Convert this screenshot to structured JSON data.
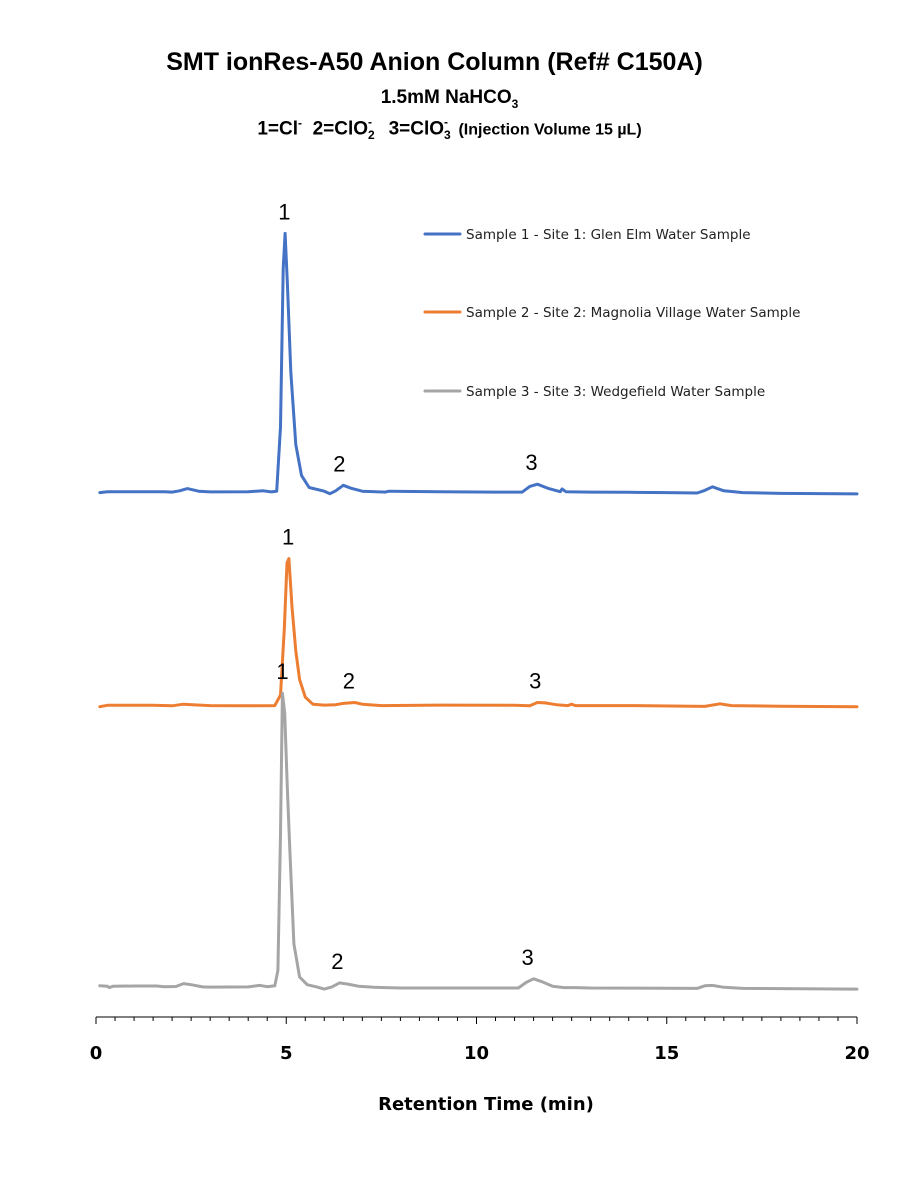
{
  "chart_data": {
    "type": "line",
    "title": "SMT ionRes-A50 Anion Column (Ref# C150A)",
    "subtitle_line2": {
      "prefix": "1.5mM NaHCO",
      "sub": "3"
    },
    "subtitle_line3": {
      "p1": "1=Cl",
      "p1_sup": "-",
      "p2": "  2=ClO",
      "p2_sub": "2",
      "p2_sup": "-",
      "p3": "  3=ClO",
      "p3_sub": "3",
      "p3_sup": "-",
      "p4": " (Injection Volume 15 µL)"
    },
    "xlabel": "Retention Time (min)",
    "ylabel": "",
    "xlim": [
      0,
      20
    ],
    "xticks": [
      "0",
      "5",
      "10",
      "15",
      "20"
    ],
    "grid": false,
    "legend_position": "top-right",
    "series": [
      {
        "name": "Sample 1 - Site 1: Glen Elm Water Sample",
        "color": "#4472C4",
        "baseline": 0,
        "points": [
          [
            0.1,
            0.2
          ],
          [
            0.3,
            0.6
          ],
          [
            1.0,
            0.6
          ],
          [
            1.8,
            0.6
          ],
          [
            2.0,
            0.4
          ],
          [
            2.2,
            1.0
          ],
          [
            2.4,
            2.0
          ],
          [
            2.7,
            0.8
          ],
          [
            3.0,
            0.5
          ],
          [
            4.0,
            0.6
          ],
          [
            4.4,
            1.0
          ],
          [
            4.6,
            0.5
          ],
          [
            4.75,
            0.8
          ],
          [
            4.85,
            30
          ],
          [
            4.92,
            102
          ],
          [
            4.97,
            118
          ],
          [
            5.03,
            95
          ],
          [
            5.12,
            55
          ],
          [
            5.25,
            22
          ],
          [
            5.4,
            8
          ],
          [
            5.6,
            2.5
          ],
          [
            6.0,
            0.8
          ],
          [
            6.15,
            -0.3
          ],
          [
            6.3,
            1.0
          ],
          [
            6.5,
            3.5
          ],
          [
            6.7,
            2.2
          ],
          [
            7.0,
            0.8
          ],
          [
            7.6,
            0.4
          ],
          [
            7.7,
            0.8
          ],
          [
            9.0,
            0.6
          ],
          [
            10.5,
            0.4
          ],
          [
            11.2,
            0.4
          ],
          [
            11.4,
            3.0
          ],
          [
            11.6,
            4.0
          ],
          [
            11.9,
            2.0
          ],
          [
            12.2,
            0.6
          ],
          [
            12.25,
            1.8
          ],
          [
            12.35,
            0.6
          ],
          [
            13.0,
            0.4
          ],
          [
            14.0,
            0.3
          ],
          [
            15.0,
            0.2
          ],
          [
            15.8,
            0.0
          ],
          [
            16.0,
            1.2
          ],
          [
            16.2,
            2.8
          ],
          [
            16.5,
            1.0
          ],
          [
            17.0,
            0.2
          ],
          [
            18.0,
            -0.2
          ],
          [
            20.0,
            -0.4
          ]
        ]
      },
      {
        "name": "Sample 2 - Site 2: Magnolia Village Water Sample",
        "color": "#ED7D31",
        "baseline": 0,
        "points": [
          [
            0.1,
            -0.3
          ],
          [
            0.3,
            0.3
          ],
          [
            1.5,
            0.3
          ],
          [
            2.0,
            0.1
          ],
          [
            2.3,
            0.8
          ],
          [
            2.6,
            0.5
          ],
          [
            3.0,
            0.2
          ],
          [
            4.0,
            0.1
          ],
          [
            4.7,
            0.2
          ],
          [
            4.85,
            5
          ],
          [
            4.95,
            35
          ],
          [
            5.02,
            65
          ],
          [
            5.07,
            67
          ],
          [
            5.15,
            45
          ],
          [
            5.25,
            25
          ],
          [
            5.35,
            12
          ],
          [
            5.5,
            4
          ],
          [
            5.7,
            0.8
          ],
          [
            6.0,
            0.4
          ],
          [
            6.3,
            0.6
          ],
          [
            6.5,
            1.2
          ],
          [
            6.8,
            1.6
          ],
          [
            7.0,
            0.8
          ],
          [
            7.5,
            0.2
          ],
          [
            9.0,
            0.4
          ],
          [
            11.0,
            0.3
          ],
          [
            11.4,
            0.1
          ],
          [
            11.6,
            1.6
          ],
          [
            11.8,
            1.4
          ],
          [
            12.1,
            0.6
          ],
          [
            12.4,
            0.2
          ],
          [
            12.5,
            0.8
          ],
          [
            12.6,
            0.2
          ],
          [
            14.0,
            0.2
          ],
          [
            16.0,
            -0.2
          ],
          [
            16.4,
            1.0
          ],
          [
            16.7,
            0.2
          ],
          [
            18.0,
            -0.1
          ],
          [
            20.0,
            -0.3
          ]
        ]
      },
      {
        "name": "Sample 3 - Site 3: Wedgefield Water Sample",
        "color": "#A5A5A5",
        "baseline": 0,
        "points": [
          [
            0.1,
            1.0
          ],
          [
            0.3,
            0.8
          ],
          [
            0.35,
            0.2
          ],
          [
            0.45,
            0.8
          ],
          [
            1.0,
            0.9
          ],
          [
            1.6,
            0.9
          ],
          [
            1.8,
            0.6
          ],
          [
            2.1,
            0.7
          ],
          [
            2.3,
            2.0
          ],
          [
            2.5,
            1.5
          ],
          [
            2.8,
            0.5
          ],
          [
            3.0,
            0.4
          ],
          [
            4.0,
            0.5
          ],
          [
            4.3,
            1.2
          ],
          [
            4.5,
            0.6
          ],
          [
            4.7,
            1.0
          ],
          [
            4.78,
            8
          ],
          [
            4.85,
            70
          ],
          [
            4.9,
            134
          ],
          [
            4.96,
            125
          ],
          [
            5.03,
            90
          ],
          [
            5.1,
            60
          ],
          [
            5.2,
            20
          ],
          [
            5.35,
            5
          ],
          [
            5.55,
            1.5
          ],
          [
            5.8,
            0.5
          ],
          [
            6.0,
            -0.5
          ],
          [
            6.2,
            0.5
          ],
          [
            6.4,
            2.3
          ],
          [
            6.6,
            1.8
          ],
          [
            6.9,
            0.8
          ],
          [
            7.3,
            0.3
          ],
          [
            8.0,
            0.0
          ],
          [
            10.0,
            0.0
          ],
          [
            11.1,
            0.0
          ],
          [
            11.3,
            2.5
          ],
          [
            11.5,
            4.2
          ],
          [
            11.7,
            3.0
          ],
          [
            12.0,
            0.8
          ],
          [
            12.3,
            0.2
          ],
          [
            12.6,
            0.2
          ],
          [
            13.0,
            0.0
          ],
          [
            15.0,
            -0.1
          ],
          [
            15.8,
            -0.2
          ],
          [
            16.0,
            1.0
          ],
          [
            16.2,
            1.2
          ],
          [
            16.5,
            0.3
          ],
          [
            17.0,
            -0.2
          ],
          [
            20.0,
            -0.5
          ]
        ]
      }
    ],
    "peak_labels": [
      {
        "series": 0,
        "text": "1",
        "x": 4.95,
        "y": 118
      },
      {
        "series": 0,
        "text": "2",
        "x": 6.5,
        "y": 3.5
      },
      {
        "series": 0,
        "text": "3",
        "x": 11.55,
        "y": 4.0
      },
      {
        "series": 1,
        "text": "1",
        "x": 5.05,
        "y": 67
      },
      {
        "series": 1,
        "text": "2",
        "x": 6.75,
        "y": 1.6
      },
      {
        "series": 1,
        "text": "3",
        "x": 11.65,
        "y": 1.6
      },
      {
        "series": 2,
        "text": "1",
        "x": 4.9,
        "y": 134
      },
      {
        "series": 2,
        "text": "2",
        "x": 6.45,
        "y": 2.3
      },
      {
        "series": 2,
        "text": "3",
        "x": 11.45,
        "y": 4.2
      }
    ]
  }
}
